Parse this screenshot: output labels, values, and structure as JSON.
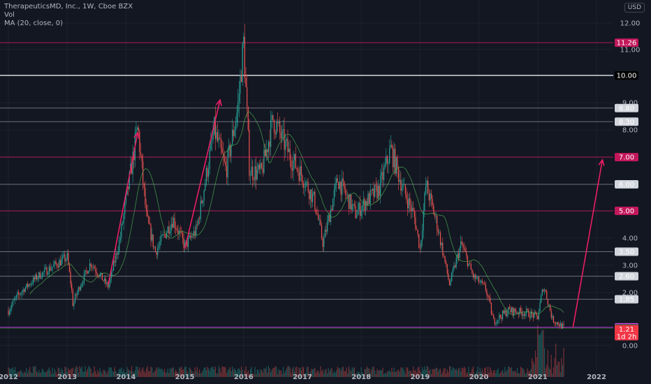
{
  "legend": {
    "title": "TherapeuticsMD, Inc., 1W, Cboe BZX",
    "vol": "Vol",
    "ma": "MA (20, close, 0)"
  },
  "currency": "USD",
  "chart_data": {
    "type": "candlestick",
    "x_ticks": [
      "2012",
      "2013",
      "2014",
      "2015",
      "2016",
      "2017",
      "2018",
      "2019",
      "2020",
      "2021",
      "2022"
    ],
    "y_ticks": [
      "12.00",
      "11.00",
      "9.00",
      "8.00",
      "6.00",
      "5.00",
      "4.00",
      "3.00",
      "2.00",
      "1.00",
      "0.00"
    ],
    "ylim": [
      -0.3,
      12.5
    ],
    "horizontal_levels": [
      {
        "value": 11.26,
        "label": "11.26",
        "color": "#c2185b"
      },
      {
        "value": 10.0,
        "label": "10.00",
        "color": "#ffffff"
      },
      {
        "value": 8.8,
        "label": "8.80",
        "color": "#787b86"
      },
      {
        "value": 8.3,
        "label": "8.30",
        "color": "#787b86"
      },
      {
        "value": 7.0,
        "label": "7.00",
        "color": "#c2185b"
      },
      {
        "value": 6.0,
        "label": "6.00",
        "color": "#787b86"
      },
      {
        "value": 5.0,
        "label": "5.00",
        "color": "#c2185b"
      },
      {
        "value": 3.5,
        "label": "3.50",
        "color": "#787b86"
      },
      {
        "value": 2.6,
        "label": "2.60",
        "color": "#787b86"
      },
      {
        "value": 1.85,
        "label": "1.85",
        "color": "#787b86"
      },
      {
        "value": 1.22,
        "label": "1.22",
        "color": "#e040fb"
      },
      {
        "value": 1.2,
        "label": "1.20",
        "color": "#1b5e20"
      },
      {
        "value": 1.1,
        "label": "1.10",
        "color": "#1b5e20"
      }
    ],
    "price_badge": {
      "price": "1.21",
      "countdown": "1d 2h",
      "color": "#f23645"
    },
    "keypoints": [
      [
        2012.0,
        1.6
      ],
      [
        2012.5,
        2.6
      ],
      [
        2013.0,
        3.3
      ],
      [
        2013.1,
        1.7
      ],
      [
        2013.4,
        3.1
      ],
      [
        2013.7,
        2.2
      ],
      [
        2013.9,
        4.0
      ],
      [
        2014.2,
        8.1
      ],
      [
        2014.35,
        4.7
      ],
      [
        2014.5,
        3.5
      ],
      [
        2014.8,
        4.7
      ],
      [
        2015.0,
        3.7
      ],
      [
        2015.2,
        4.3
      ],
      [
        2015.5,
        8.0
      ],
      [
        2015.7,
        6.5
      ],
      [
        2015.9,
        8.8
      ],
      [
        2016.0,
        11.26
      ],
      [
        2016.1,
        6.5
      ],
      [
        2016.3,
        6.4
      ],
      [
        2016.5,
        8.4
      ],
      [
        2016.8,
        7.0
      ],
      [
        2017.0,
        6.3
      ],
      [
        2017.2,
        5.4
      ],
      [
        2017.35,
        3.8
      ],
      [
        2017.6,
        6.2
      ],
      [
        2017.9,
        4.9
      ],
      [
        2018.1,
        5.4
      ],
      [
        2018.3,
        5.8
      ],
      [
        2018.5,
        7.3
      ],
      [
        2018.7,
        5.9
      ],
      [
        2018.9,
        4.8
      ],
      [
        2019.0,
        3.6
      ],
      [
        2019.1,
        6.0
      ],
      [
        2019.3,
        4.4
      ],
      [
        2019.5,
        2.3
      ],
      [
        2019.7,
        3.8
      ],
      [
        2019.9,
        2.6
      ],
      [
        2020.1,
        2.2
      ],
      [
        2020.25,
        1.35
      ],
      [
        2020.5,
        1.6
      ],
      [
        2020.8,
        1.55
      ],
      [
        2021.0,
        1.45
      ],
      [
        2021.1,
        2.2
      ],
      [
        2021.25,
        1.4
      ],
      [
        2021.45,
        1.21
      ]
    ]
  }
}
